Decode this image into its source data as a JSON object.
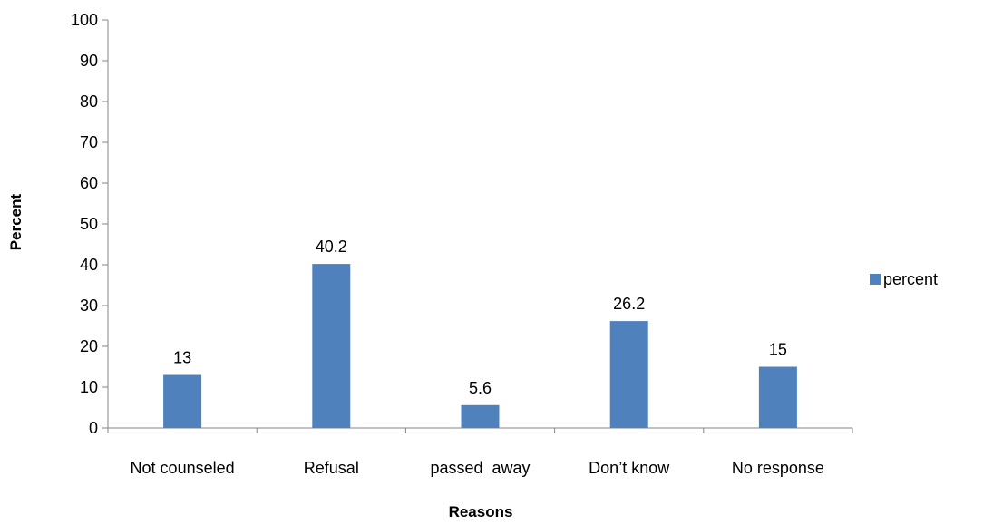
{
  "chart_data": {
    "type": "bar",
    "categories": [
      "Not counseled",
      "Refusal",
      "passed  away",
      "Don’t know",
      "No response"
    ],
    "series": [
      {
        "name": "percent",
        "values": [
          13,
          40.2,
          5.6,
          26.2,
          15
        ]
      }
    ],
    "data_labels": [
      "13",
      "40.2",
      "5.6",
      "26.2",
      "15"
    ],
    "title": "",
    "xlabel": "Reasons",
    "ylabel": "Percent",
    "ylim": [
      0,
      100
    ],
    "yticks": [
      "0",
      "10",
      "20",
      "30",
      "40",
      "50",
      "60",
      "70",
      "80",
      "90",
      "100"
    ],
    "grid": false,
    "legend": "right",
    "colors": {
      "bar": "#4f81bd",
      "axis": "#868686"
    }
  }
}
